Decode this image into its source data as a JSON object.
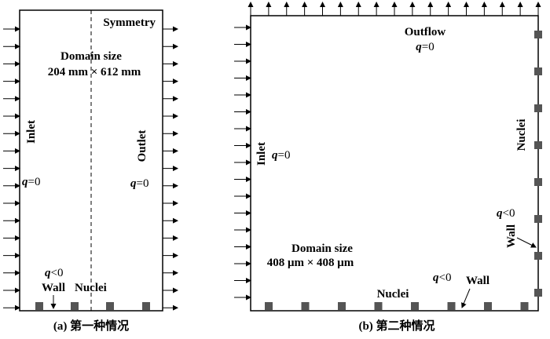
{
  "panel_a": {
    "symmetry_label": "Symmetry",
    "domain_label": "Domain size",
    "domain_dims": "204 mm × 612 mm",
    "inlet_label": "Inlet",
    "outlet_label": "Outlet",
    "inlet_q_var": "q",
    "inlet_q_rel": "=0",
    "outlet_q_var": "q",
    "outlet_q_rel": "=0",
    "wall_q_var": "q",
    "wall_q_rel": "<0",
    "wall_label": "Wall",
    "nuclei_label": "Nuclei",
    "caption": "(a) 第一种情况"
  },
  "panel_b": {
    "outflow_label": "Outflow",
    "outflow_q_var": "q",
    "outflow_q_rel": "=0",
    "inlet_label": "Inlet",
    "inlet_q_var": "q",
    "inlet_q_rel": "=0",
    "nuclei_right_label": "Nuclei",
    "right_q_var": "q",
    "right_q_rel": "<0",
    "right_wall_label": "Wall",
    "domain_label": "Domain size",
    "domain_dims": "408 μm × 408 μm",
    "nuclei_bottom_label": "Nuclei",
    "bottom_q_var": "q",
    "bottom_q_rel": "<0",
    "bottom_wall_label": "Wall",
    "caption": "(b) 第二种情况"
  },
  "colors": {
    "stroke": "#000000",
    "nucleus": "#555555"
  },
  "icons": {
    "inflow_arrow": "right-arrow-icon",
    "outflow_arrow": "right-arrow-icon",
    "upward_arrow": "up-arrow-icon",
    "pointer_arrow": "pointer-arrow-icon",
    "nucleus": "square-nucleus-icon"
  }
}
